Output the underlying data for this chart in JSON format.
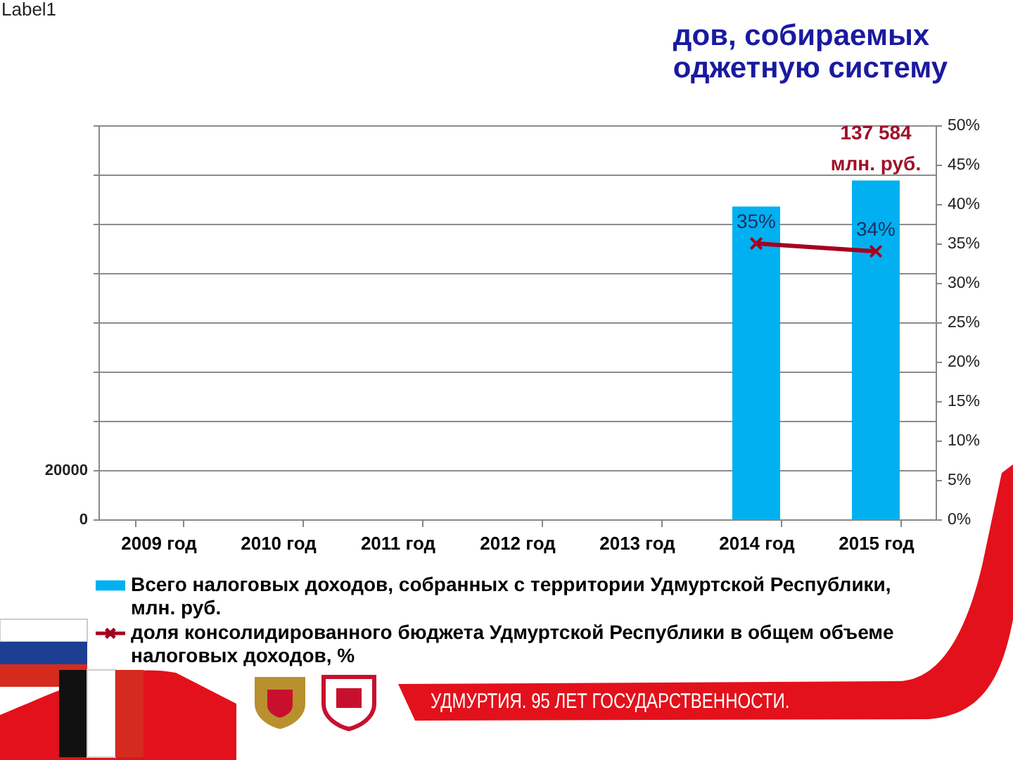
{
  "chart_data": {
    "type": "bar",
    "title": "дов, собираемых оджетную систему",
    "categories": [
      "2009 год",
      "2010 год",
      "2011 год",
      "2012 год",
      "2013 год",
      "2014 год",
      "2015 год"
    ],
    "series": [
      {
        "name": "Всего налоговых доходов, собранных с территории Удмуртской Республики, млн. руб.",
        "color": "#00b0f0",
        "values": [
          null,
          null,
          null,
          null,
          null,
          127000,
          137584
        ],
        "value_labels": [
          null,
          null,
          null,
          null,
          null,
          null,
          "137 584 млн. руб."
        ]
      },
      {
        "name": "доля консолидированного бюджета Удмуртской Республики в общем объеме налоговых доходов, %",
        "type": "line",
        "axis": "y2",
        "color": "#a50021",
        "values": [
          null,
          null,
          null,
          null,
          null,
          35,
          34
        ],
        "value_labels": [
          null,
          null,
          null,
          null,
          null,
          "35%",
          "34%"
        ]
      }
    ],
    "ylim": [
      0,
      160000
    ],
    "yticks": [
      0,
      20000,
      {
        "value": 40000,
        "label": null
      },
      {
        "value": 60000,
        "label": null
      },
      {
        "value": 80000,
        "label": null
      },
      {
        "value": 100000,
        "label": null
      },
      {
        "value": 120000,
        "label": null
      },
      {
        "value": 140000,
        "label": null
      },
      {
        "value": 160000,
        "label": null
      }
    ],
    "y2lim": [
      0,
      50
    ],
    "y2ticks": [
      {
        "value": 0,
        "label": "0%"
      },
      {
        "value": 5,
        "label": "5%"
      },
      {
        "value": 10,
        "label": "10%"
      },
      {
        "value": 15,
        "label": "15%"
      },
      {
        "value": 20,
        "label": "20%"
      },
      {
        "value": 25,
        "label": "25%"
      },
      {
        "value": 30,
        "label": "30%"
      },
      {
        "value": 35,
        "label": "35%"
      },
      {
        "value": 40,
        "label": "40%"
      },
      {
        "value": 45,
        "label": "45%"
      },
      {
        "value": 50,
        "label": "50%"
      }
    ],
    "grid": "y",
    "legend": "bottom",
    "marker": "cross",
    "annotations": [
      "Label1",
      "УДМУРТИЯ. 95 ЛЕТ ГОСУДАРСТВЕННОСТИ."
    ]
  }
}
